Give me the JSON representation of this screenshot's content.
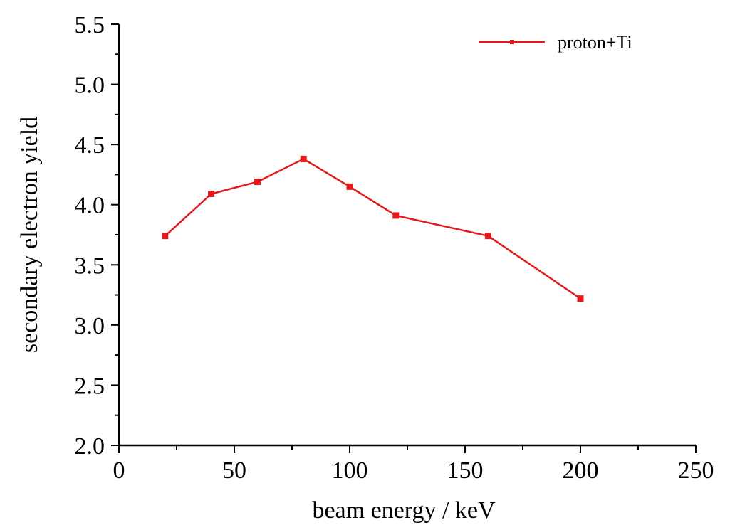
{
  "chart_data": {
    "type": "line",
    "xlabel": "beam energy / keV",
    "ylabel": "secondary electron yield",
    "xlim": [
      0,
      250
    ],
    "ylim": [
      2.0,
      5.5
    ],
    "x_ticks": [
      "0",
      "50",
      "100",
      "150",
      "200",
      "250"
    ],
    "y_ticks": [
      "2.0",
      "2.5",
      "3.0",
      "3.5",
      "4.0",
      "4.5",
      "5.0",
      "5.5"
    ],
    "grid": false,
    "legend_position": "top-right",
    "series": [
      {
        "name": "proton+Ti",
        "color": "#e31a1c",
        "marker": "square",
        "x": [
          20,
          40,
          60,
          80,
          100,
          120,
          160,
          200
        ],
        "y": [
          3.74,
          4.09,
          4.19,
          4.38,
          4.15,
          3.91,
          3.74,
          3.22
        ]
      }
    ]
  }
}
